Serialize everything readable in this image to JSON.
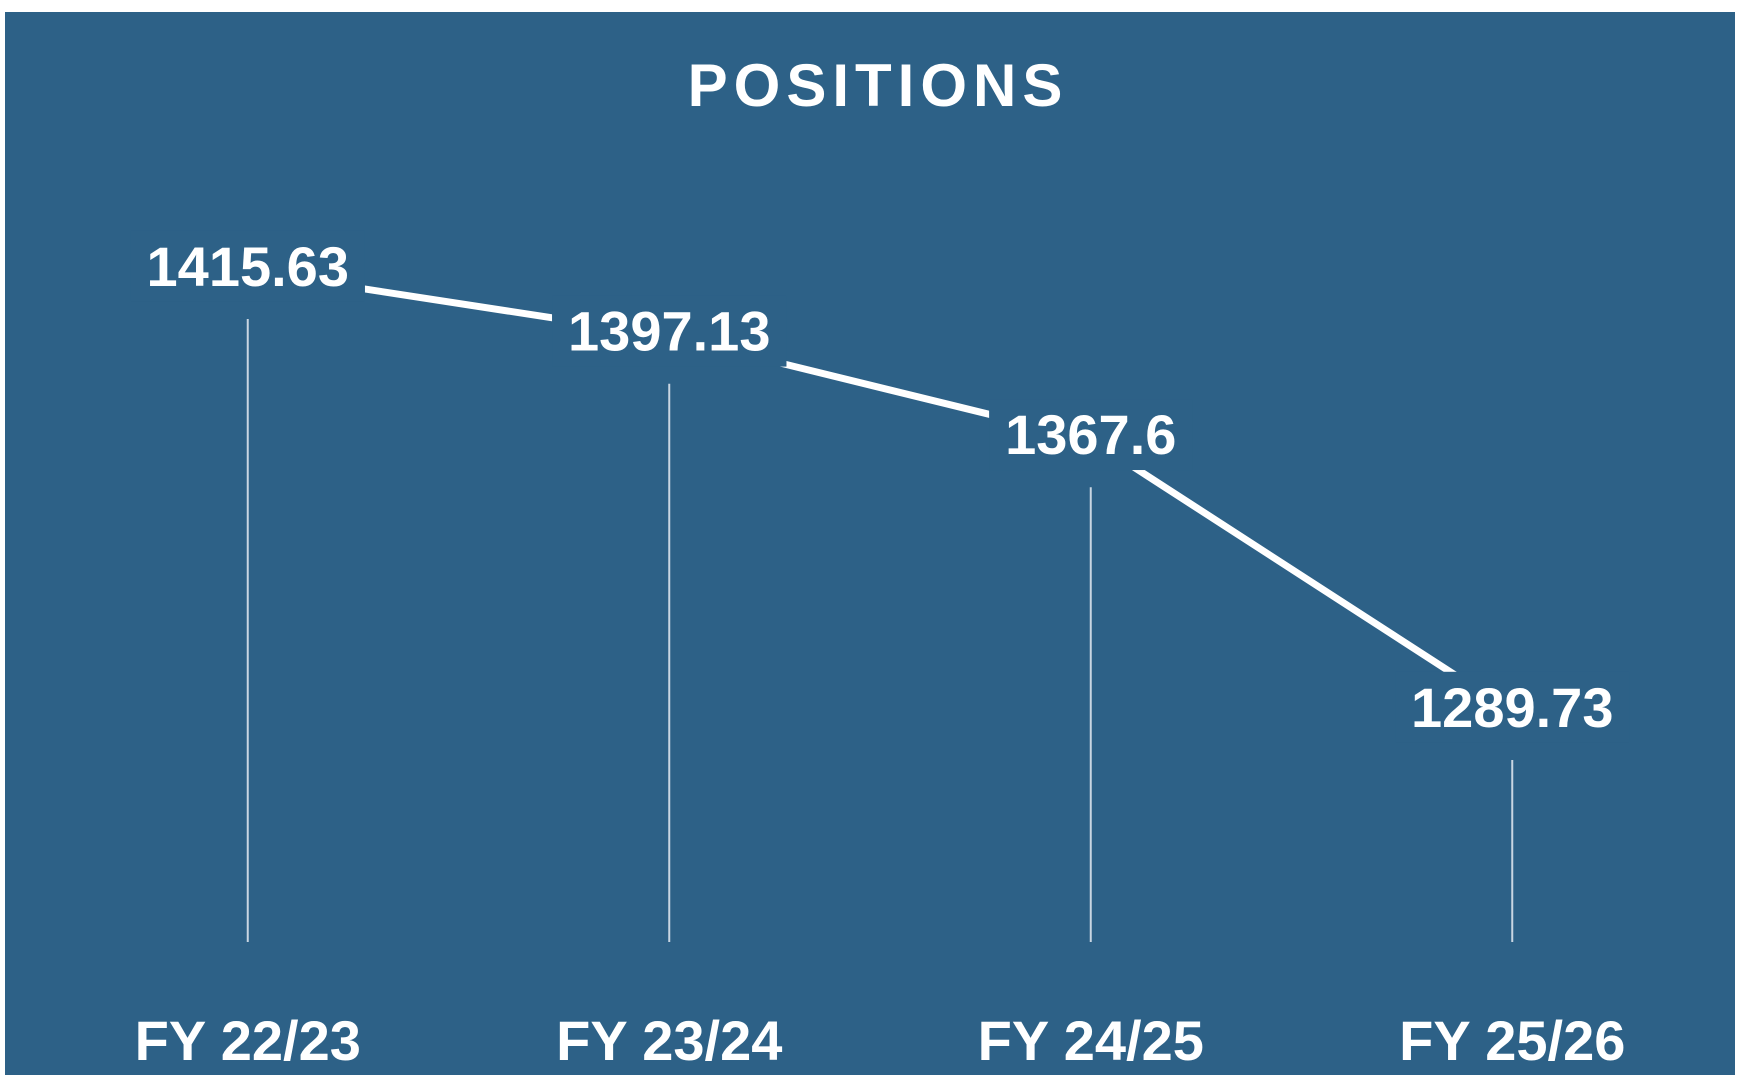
{
  "chart_data": {
    "type": "line",
    "title": "POSITIONS",
    "categories": [
      "FY 22/23",
      "FY 23/24",
      "FY 24/25",
      "FY 25/26"
    ],
    "values": [
      1415.63,
      1397.13,
      1367.6,
      1289.73
    ],
    "color": "#ffffff",
    "background": "#2d6187"
  }
}
